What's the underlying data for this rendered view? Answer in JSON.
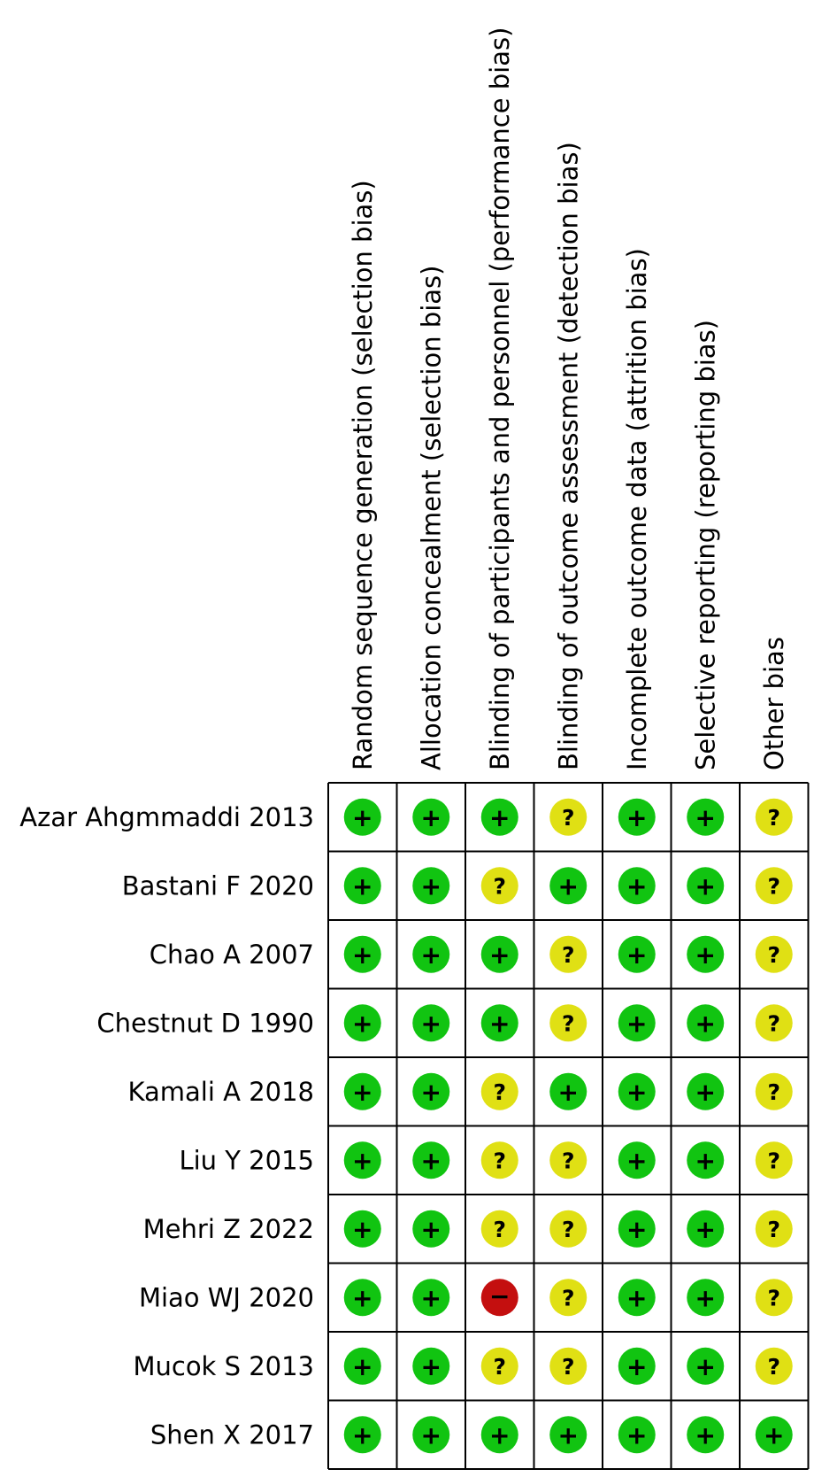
{
  "chart_data": {
    "type": "table",
    "columns": [
      "Random sequence generation (selection bias)",
      "Allocation concealment (selection bias)",
      "Blinding of participants and personnel (performance bias)",
      "Blinding of outcome assessment (detection bias)",
      "Incomplete outcome data (attrition bias)",
      "Selective reporting (reporting bias)",
      "Other bias"
    ],
    "rows": [
      {
        "study": "Azar Ahgmmaddi 2013",
        "ratings": [
          "+",
          "+",
          "+",
          "?",
          "+",
          "+",
          "?"
        ]
      },
      {
        "study": "Bastani F 2020",
        "ratings": [
          "+",
          "+",
          "?",
          "+",
          "+",
          "+",
          "?"
        ]
      },
      {
        "study": "Chao A 2007",
        "ratings": [
          "+",
          "+",
          "+",
          "?",
          "+",
          "+",
          "?"
        ]
      },
      {
        "study": "Chestnut D 1990",
        "ratings": [
          "+",
          "+",
          "+",
          "?",
          "+",
          "+",
          "?"
        ]
      },
      {
        "study": "Kamali A 2018",
        "ratings": [
          "+",
          "+",
          "?",
          "+",
          "+",
          "+",
          "?"
        ]
      },
      {
        "study": "Liu Y 2015",
        "ratings": [
          "+",
          "+",
          "?",
          "?",
          "+",
          "+",
          "?"
        ]
      },
      {
        "study": "Mehri Z 2022",
        "ratings": [
          "+",
          "+",
          "?",
          "?",
          "+",
          "+",
          "?"
        ]
      },
      {
        "study": "Miao WJ 2020",
        "ratings": [
          "+",
          "+",
          "−",
          "?",
          "+",
          "+",
          "?"
        ]
      },
      {
        "study": "Mucok S 2013",
        "ratings": [
          "+",
          "+",
          "?",
          "?",
          "+",
          "+",
          "?"
        ]
      },
      {
        "study": "Shen X 2017",
        "ratings": [
          "+",
          "+",
          "+",
          "+",
          "+",
          "+",
          "+"
        ]
      }
    ],
    "rating_colors": {
      "+": "#11c411",
      "?": "#e0e014",
      "−": "#c40f0f"
    }
  }
}
